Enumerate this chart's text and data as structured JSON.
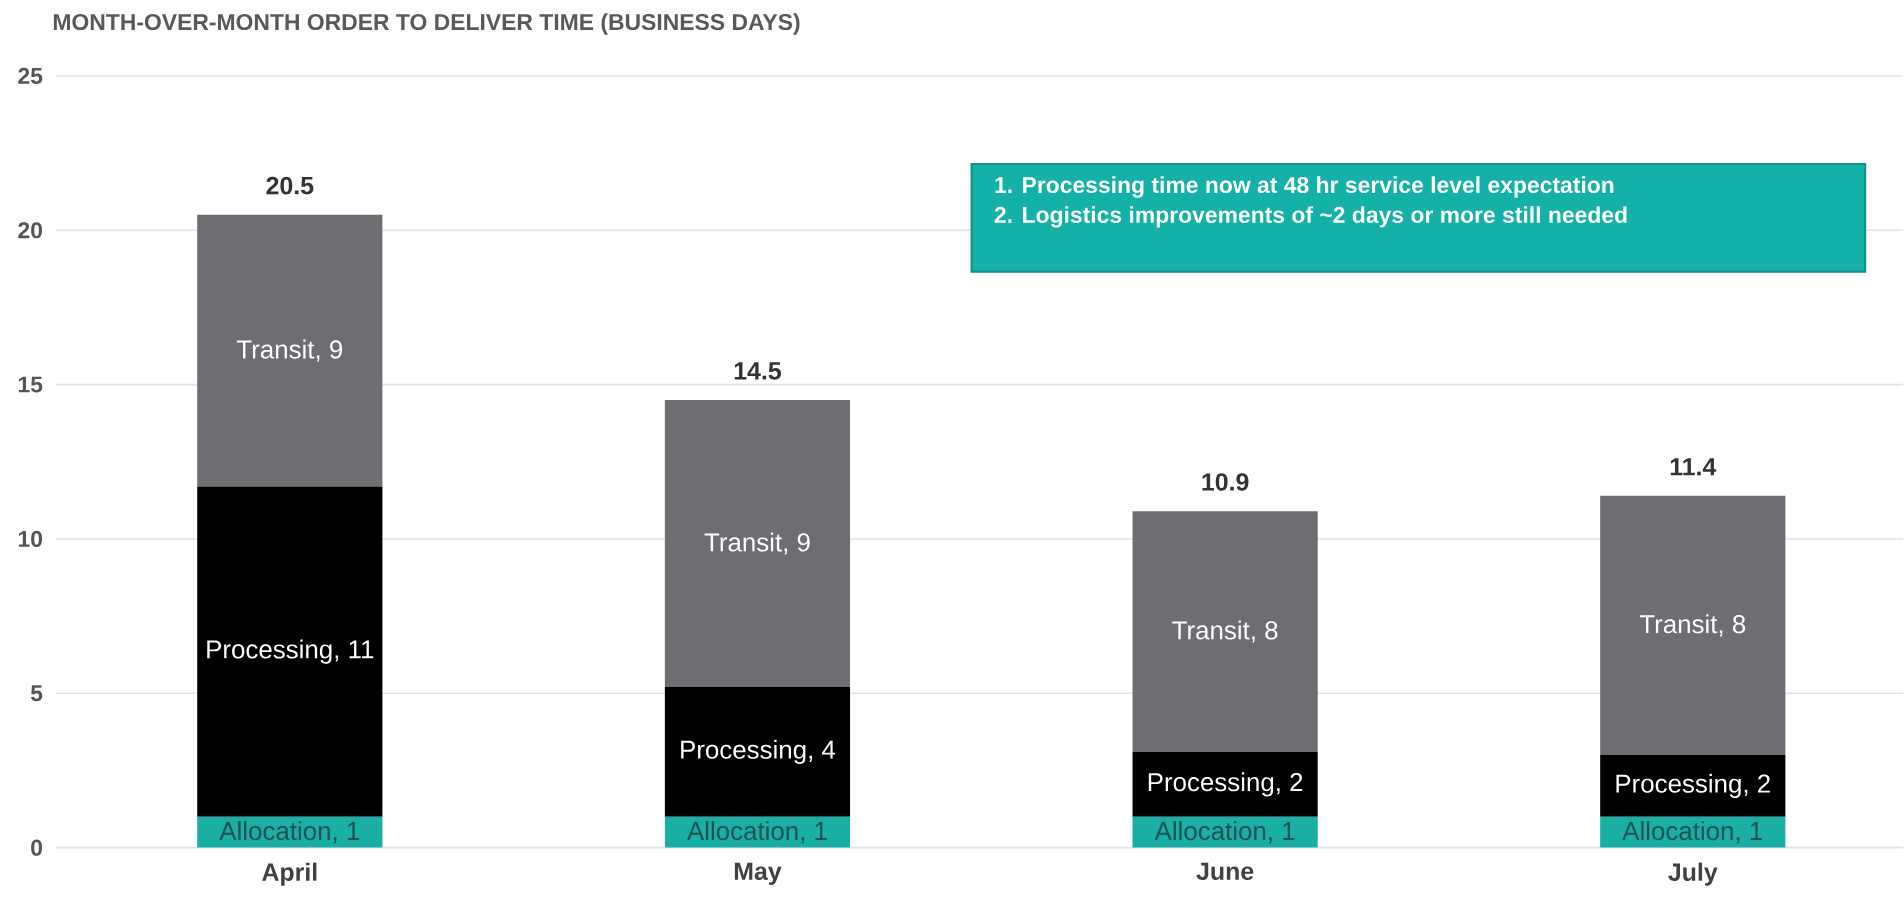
{
  "chart_data": {
    "type": "bar",
    "stacked": true,
    "title": "MONTH-OVER-MONTH ORDER TO DELIVER TIME (BUSINESS DAYS)",
    "categories": [
      "April",
      "May",
      "June",
      "July"
    ],
    "series": [
      {
        "color": "#1aafa5",
        "values": [
          1,
          1,
          1,
          1
        ],
        "value_labels": [
          "Allocation, 1",
          "Allocation, 1",
          "Allocation, 1",
          "Allocation, 1"
        ]
      },
      {
        "color": "#000000",
        "values": [
          10.7,
          4.2,
          2.1,
          2.0
        ],
        "value_labels": [
          "Processing, 11",
          "Processing, 4",
          "Processing, 2",
          "Processing, 2"
        ]
      },
      {
        "color": "#6d6e71",
        "values": [
          8.8,
          9.3,
          7.8,
          8.4
        ],
        "value_labels": [
          "Transit, 9",
          "Transit, 9",
          "Transit, 8",
          "Transit, 8"
        ]
      }
    ],
    "totals": [
      "20.5",
      "14.5",
      "10.9",
      "11.4"
    ],
    "ylim": [
      0,
      25
    ],
    "yticks": [
      0,
      5,
      10,
      15,
      20,
      25
    ],
    "grid": "y",
    "annotations": [
      "1. Processing time now at 48 hr service level expectation",
      "2. Logistics improvements of ~2 days or more still needed"
    ]
  }
}
